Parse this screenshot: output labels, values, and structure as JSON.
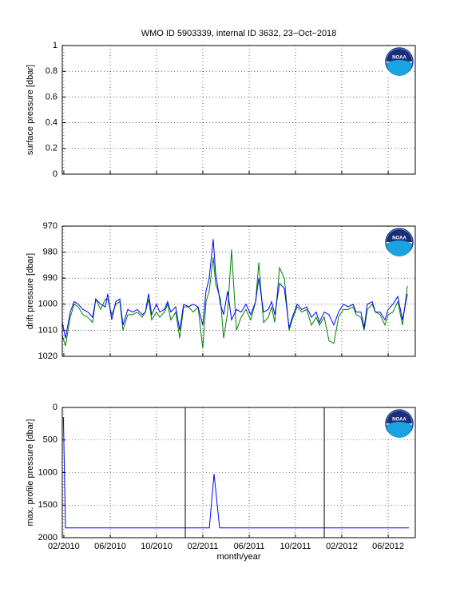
{
  "logo": "NOAA",
  "chart_data": [
    {
      "type": "line",
      "title": "WMO ID 5903339, internal ID 3632, 23−Oct−2018",
      "ylabel": "surface pressure [dbar]",
      "x": [],
      "series": [],
      "xlim": [
        2010.072,
        2012.612
      ],
      "ylim": [
        0,
        1
      ],
      "xticks": [
        2010.083,
        2010.417,
        2010.75,
        2011.083,
        2011.417,
        2011.75,
        2012.083,
        2012.417
      ],
      "show_xtick_labels": false,
      "yticks": [
        0,
        0.2,
        0.4,
        0.6,
        0.8,
        1
      ],
      "grid": true
    },
    {
      "type": "line",
      "ylabel": "drift pressure [dbar]",
      "x": [
        2010.072,
        2010.095,
        2010.129,
        2010.158,
        2010.187,
        2010.221,
        2010.256,
        2010.29,
        2010.313,
        2010.348,
        2010.382,
        2010.399,
        2010.428,
        2010.457,
        2010.486,
        2010.509,
        2010.543,
        2010.578,
        2010.612,
        2010.647,
        2010.67,
        2010.693,
        2010.715,
        2010.75,
        2010.773,
        2010.807,
        2010.83,
        2010.853,
        2010.888,
        2010.917,
        2010.945,
        2010.98,
        2011.014,
        2011.049,
        2011.083,
        2011.106,
        2011.129,
        2011.158,
        2011.175,
        2011.21,
        2011.233,
        2011.262,
        2011.29,
        2011.325,
        2011.359,
        2011.394,
        2011.428,
        2011.463,
        2011.486,
        2011.52,
        2011.555,
        2011.578,
        2011.601,
        2011.635,
        2011.67,
        2011.704,
        2011.727,
        2011.762,
        2011.796,
        2011.83,
        2011.865,
        2011.899,
        2011.922,
        2011.957,
        2011.991,
        2012.026,
        2012.06,
        2012.095,
        2012.129,
        2012.164,
        2012.187,
        2012.221,
        2012.244,
        2012.267,
        2012.302,
        2012.325,
        2012.359,
        2012.394,
        2012.417,
        2012.451,
        2012.486,
        2012.52,
        2012.555
      ],
      "series": [
        {
          "color": "#008000",
          "values": [
            1012,
            1016,
            1005,
            1000,
            1001,
            1004,
            1005,
            1007,
            998,
            1002,
            998,
            998,
            1004,
            1000,
            999,
            1010,
            1004,
            1004,
            1003,
            1005,
            1003,
            998,
            1006,
            1003,
            1005,
            1003,
            1000,
            1006,
            1003,
            1013,
            1001,
            1001,
            1003,
            1001,
            1017,
            999,
            995,
            982,
            992,
            998,
            1013,
            1003,
            979,
            1010,
            1005,
            1002,
            1006,
            999,
            984,
            1007,
            1005,
            1001,
            1007,
            986,
            990,
            1010,
            1006,
            1001,
            1003,
            1002,
            1008,
            1005,
            1008,
            1005,
            1014,
            1015,
            1005,
            1002,
            1002,
            1001,
            1004,
            1005,
            1010,
            1002,
            1000,
            1003,
            1004,
            1008,
            1004,
            1003,
            999,
            1008,
            993
          ]
        },
        {
          "color": "#0000ff",
          "values": [
            1007,
            1013,
            1003,
            999,
            1000,
            1002,
            1003,
            1005,
            998,
            1000,
            1001,
            996,
            1006,
            999,
            998,
            1008,
            1002,
            1003,
            1002,
            1004,
            1003,
            996,
            1004,
            1000,
            1003,
            1002,
            999,
            1003,
            1001,
            1010,
            1000,
            1001,
            1000,
            1001,
            1008,
            995,
            990,
            975,
            988,
            1000,
            1004,
            995,
            1006,
            1002,
            1003,
            1000,
            1004,
            999,
            990,
            1003,
            1002,
            999,
            1004,
            992,
            994,
            1009,
            1005,
            1000,
            1002,
            1001,
            1005,
            1003,
            1007,
            1003,
            1004,
            1008,
            1003,
            1000,
            1001,
            1000,
            1003,
            1003,
            1009,
            1000,
            999,
            1003,
            1003,
            1006,
            1002,
            1000,
            997,
            1006,
            996
          ]
        }
      ],
      "xlim": [
        2010.072,
        2012.612
      ],
      "ylim": [
        1020,
        970
      ],
      "xticks": [
        2010.083,
        2010.417,
        2010.75,
        2011.083,
        2011.417,
        2011.75,
        2012.083,
        2012.417
      ],
      "show_xtick_labels": false,
      "yticks": [
        970,
        980,
        990,
        1000,
        1010,
        1020
      ],
      "grid": true
    },
    {
      "type": "line",
      "ylabel": "max. profile pressure [dbar]",
      "xlabel": "month/year",
      "x": [
        2010.08,
        2010.095,
        2011.13,
        2011.164,
        2011.204,
        2012.566
      ],
      "series": [
        {
          "color": "#0000ff",
          "values": [
            150,
            1850,
            1850,
            1020,
            1850,
            1850
          ]
        }
      ],
      "vlines": [
        2010.957,
        2011.957
      ],
      "vline_color": "#000000",
      "xlim": [
        2010.072,
        2012.612
      ],
      "ylim": [
        2000,
        0
      ],
      "xticks": [
        {
          "value": 2010.083,
          "label": "02/2010"
        },
        {
          "value": 2010.417,
          "label": "06/2010"
        },
        {
          "value": 2010.75,
          "label": "10/2010"
        },
        {
          "value": 2011.083,
          "label": "02/2011"
        },
        {
          "value": 2011.417,
          "label": "06/2011"
        },
        {
          "value": 2011.75,
          "label": "10/2011"
        },
        {
          "value": 2012.083,
          "label": "02/2012"
        },
        {
          "value": 2012.417,
          "label": "06/2012"
        }
      ],
      "show_xtick_labels": true,
      "yticks": [
        0,
        500,
        1000,
        1500,
        2000
      ],
      "grid": true
    }
  ]
}
